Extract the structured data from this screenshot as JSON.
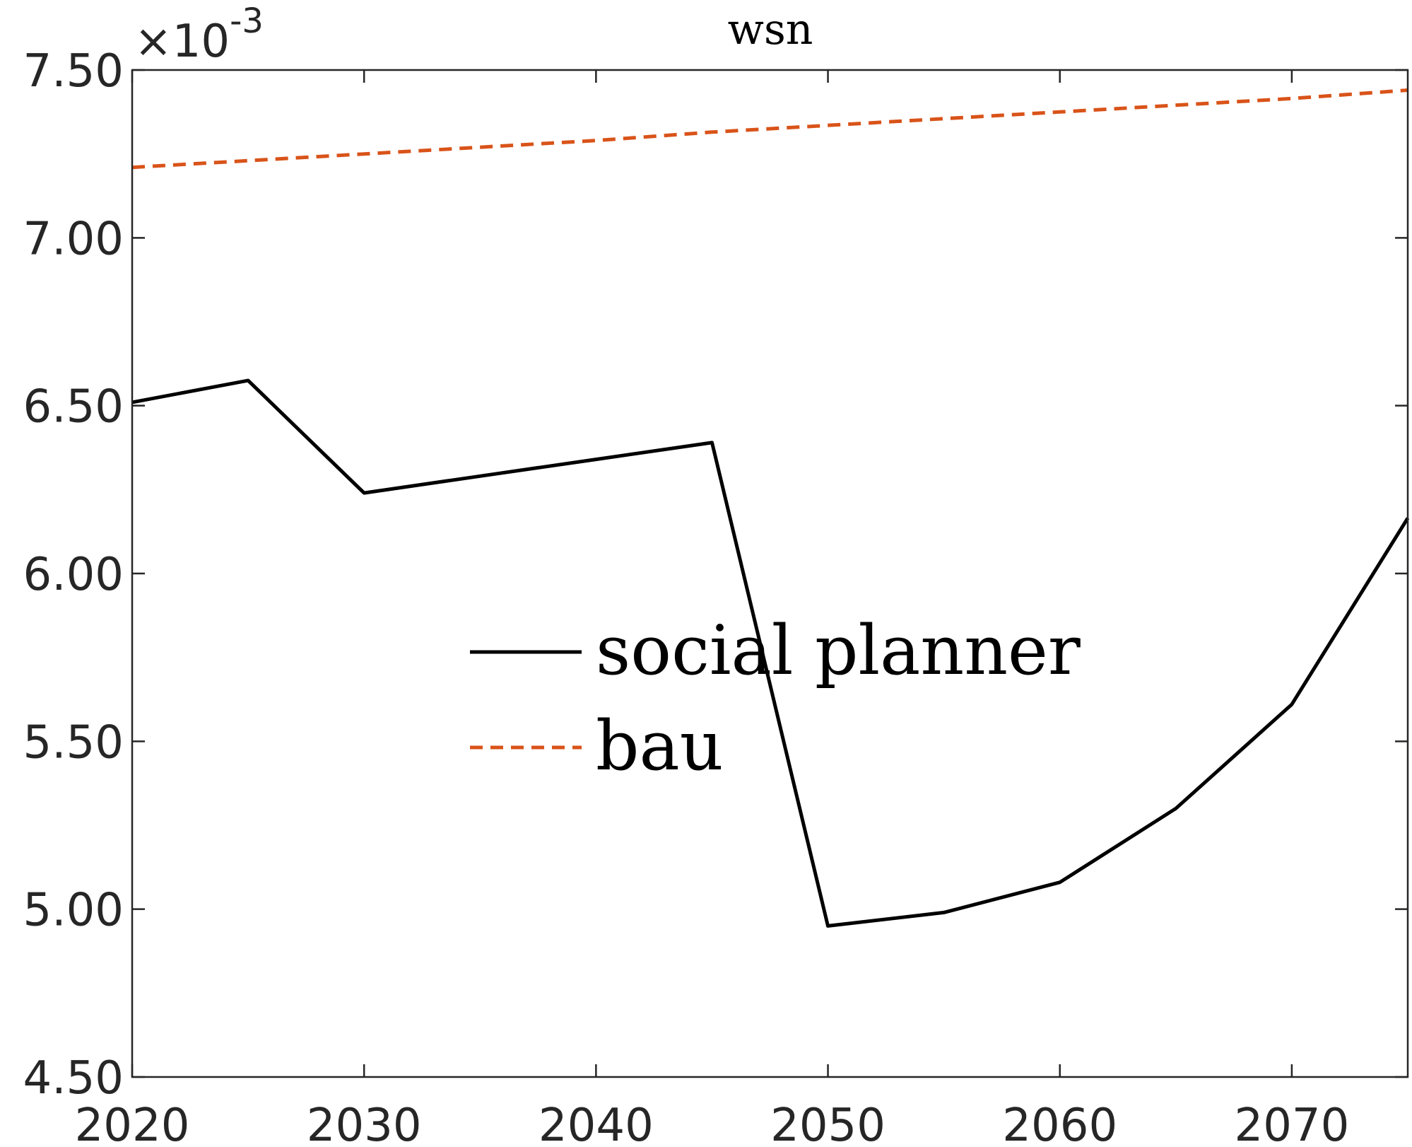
{
  "chart_data": {
    "type": "line",
    "title": "wsn",
    "xlabel": "",
    "ylabel": "",
    "y_multiplier": {
      "times": "×",
      "base": "10",
      "exponent": "-3"
    },
    "xlim": [
      2020,
      2075
    ],
    "ylim": [
      4.5,
      7.5
    ],
    "x_ticks": [
      2020,
      2030,
      2040,
      2050,
      2060,
      2070
    ],
    "x_tick_labels": [
      "2020",
      "2030",
      "2040",
      "2050",
      "2060",
      "2070"
    ],
    "y_ticks": [
      4.5,
      5.0,
      5.5,
      6.0,
      6.5,
      7.0,
      7.5
    ],
    "y_tick_labels": [
      "4.50",
      "5.00",
      "5.50",
      "6.00",
      "6.50",
      "7.00",
      "7.50"
    ],
    "grid": false,
    "legend_position": "center",
    "series": [
      {
        "name": "social planner",
        "color": "#000000",
        "dash": "solid",
        "x": [
          2020,
          2025,
          2030,
          2035,
          2040,
          2045,
          2050,
          2055,
          2060,
          2065,
          2070,
          2075
        ],
        "y": [
          6.51,
          6.575,
          6.24,
          6.29,
          6.34,
          6.39,
          4.95,
          4.99,
          5.08,
          5.3,
          5.61,
          6.165
        ]
      },
      {
        "name": "bau",
        "color": "#D95319",
        "dash": "dashed",
        "x": [
          2020,
          2025,
          2030,
          2035,
          2040,
          2045,
          2050,
          2055,
          2060,
          2065,
          2070,
          2075
        ],
        "y": [
          7.21,
          7.23,
          7.25,
          7.27,
          7.29,
          7.315,
          7.335,
          7.355,
          7.375,
          7.395,
          7.415,
          7.44
        ]
      }
    ]
  }
}
